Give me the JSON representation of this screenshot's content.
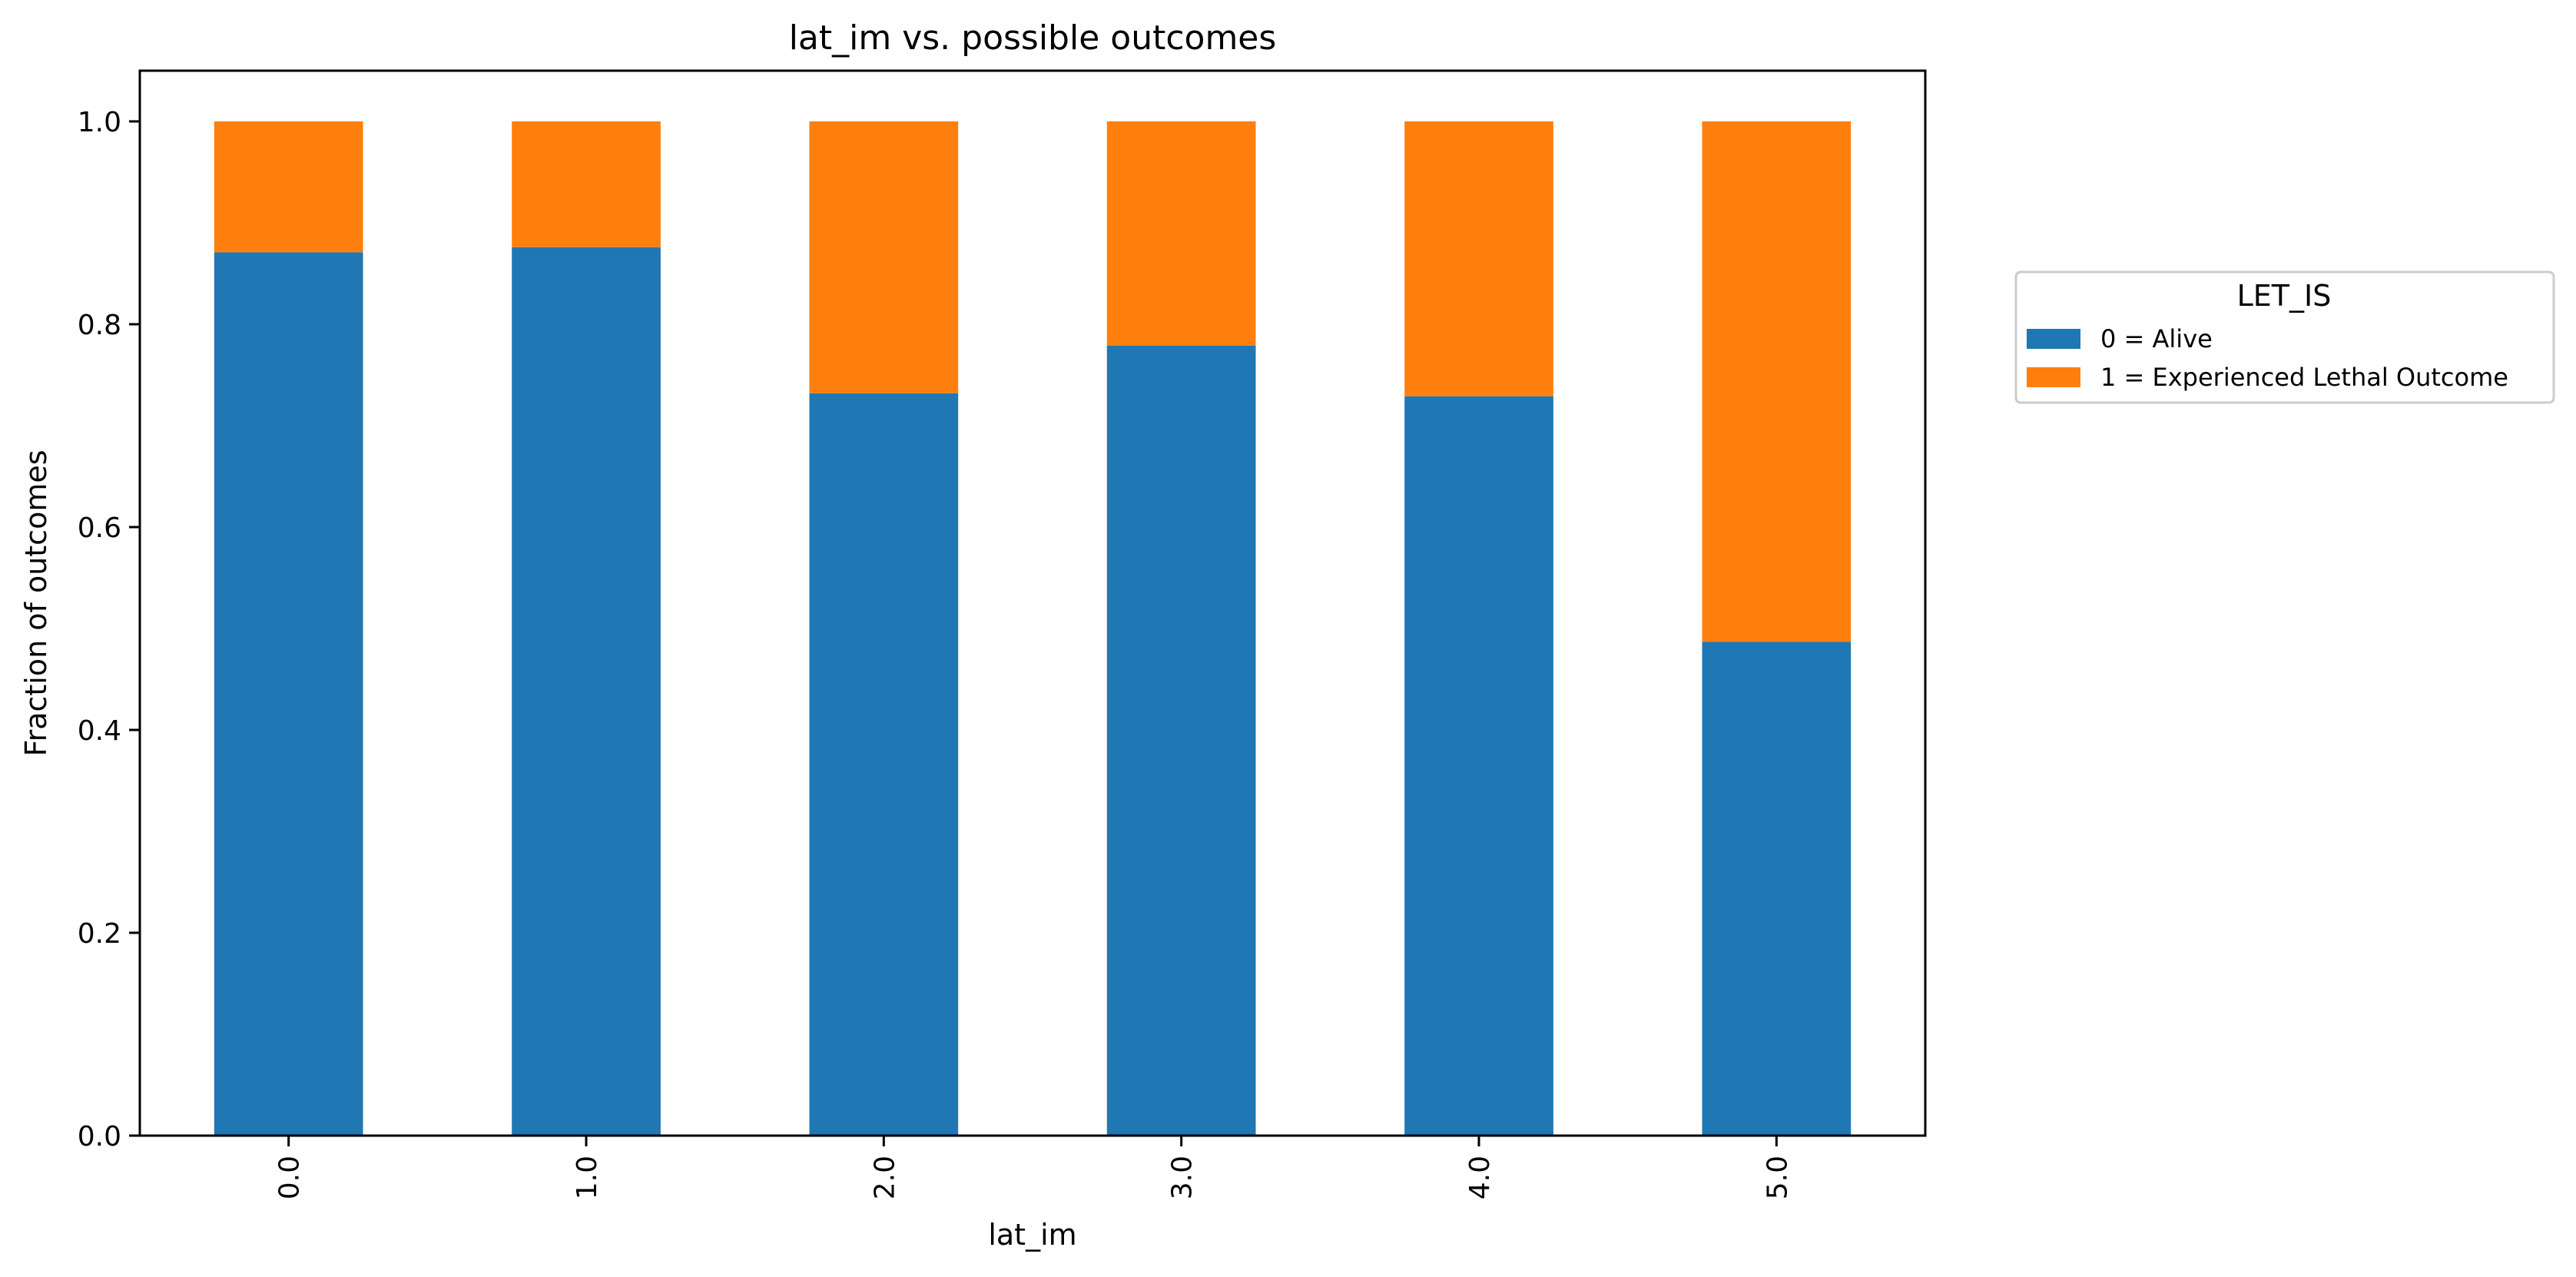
{
  "chart_data": {
    "type": "bar",
    "stacked": true,
    "title": "lat_im vs. possible outcomes",
    "xlabel": "lat_im",
    "ylabel": "Fraction of outcomes",
    "categories": [
      "0.0",
      "1.0",
      "2.0",
      "3.0",
      "4.0",
      "5.0"
    ],
    "ylim": [
      0,
      1.05
    ],
    "yticks": [
      "0.0",
      "0.2",
      "0.4",
      "0.6",
      "0.8",
      "1.0"
    ],
    "grid": false,
    "legend": {
      "title": "LET_IS",
      "placement": "right, outside plot area"
    },
    "series": [
      {
        "name": "0 = Alive",
        "color": "#1f77b4",
        "values": [
          0.871,
          0.876,
          0.732,
          0.779,
          0.729,
          0.487
        ]
      },
      {
        "name": "1 = Experienced Lethal Outcome",
        "color": "#ff7f0e",
        "values": [
          0.129,
          0.124,
          0.268,
          0.221,
          0.271,
          0.513
        ]
      }
    ]
  }
}
